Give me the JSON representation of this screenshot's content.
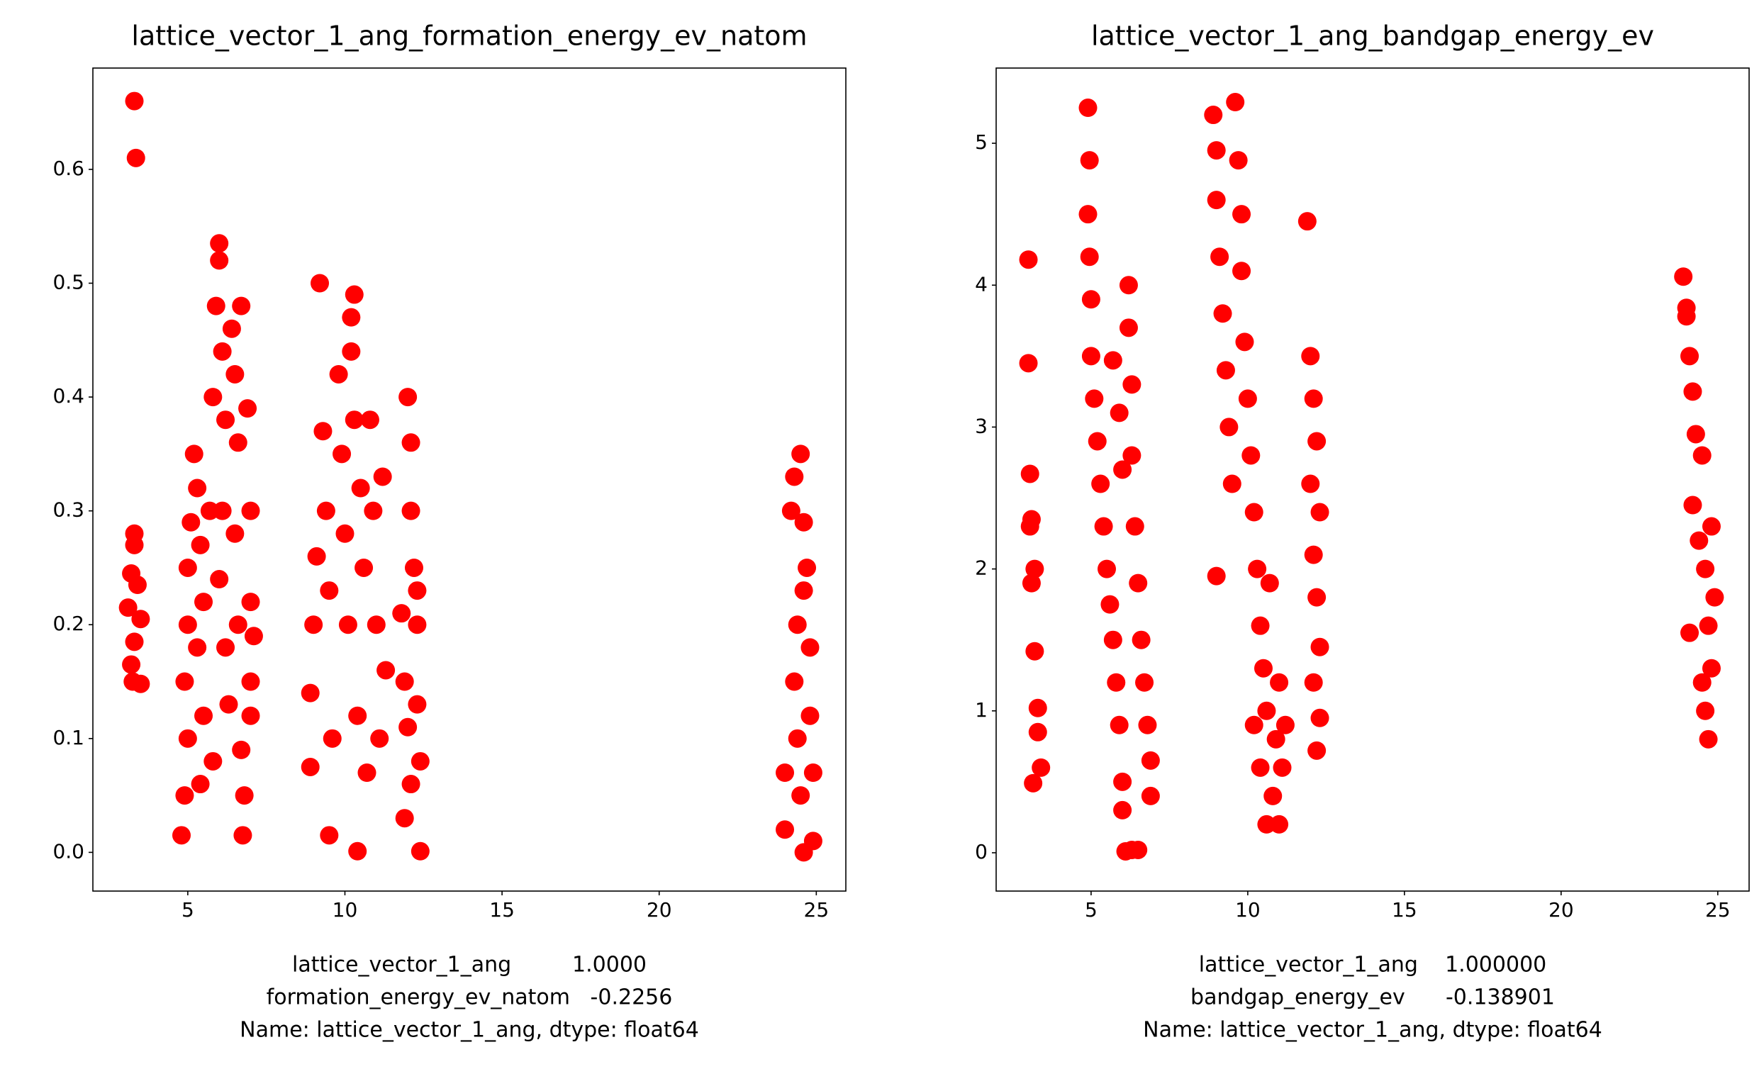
{
  "chart_data": [
    {
      "type": "scatter",
      "title": "lattice_vector_1_ang_formation_energy_ev_natom",
      "xlabel": [
        "lattice_vector_1_ang         1.0000",
        "formation_energy_ev_natom   -0.2256",
        "Name: lattice_vector_1_ang, dtype: float64"
      ],
      "color": "#ff0000",
      "xlim": [
        1.98,
        25.94
      ],
      "xticks": [
        5,
        10,
        15,
        20,
        25
      ],
      "ylim": [
        -0.034,
        0.689
      ],
      "yticks": [
        {
          "value": 0,
          "label": "0.0"
        },
        0.1,
        0.2,
        0.3,
        0.4,
        0.5,
        0.6
      ],
      "x": [
        3.3,
        3.35,
        3.3,
        3.2,
        3.1,
        3.5,
        3.4,
        3.2,
        3.25,
        3.5,
        3.3,
        3.3,
        4.8,
        4.9,
        5.0,
        4.9,
        5.0,
        5.0,
        5.1,
        5.2,
        5.3,
        5.4,
        5.5,
        5.3,
        5.5,
        5.4,
        5.8,
        5.7,
        5.8,
        5.9,
        6.0,
        6.0,
        6.1,
        6.2,
        6.1,
        6.0,
        6.2,
        6.3,
        6.4,
        6.5,
        6.6,
        6.5,
        6.6,
        6.7,
        6.7,
        6.8,
        6.75,
        6.9,
        7.0,
        7.0,
        7.1,
        7.0,
        7.0,
        8.9,
        8.9,
        9.0,
        9.1,
        9.2,
        9.3,
        9.4,
        9.5,
        9.6,
        9.5,
        9.8,
        9.9,
        10.0,
        10.1,
        10.2,
        10.2,
        10.3,
        10.3,
        10.4,
        10.4,
        10.5,
        10.6,
        10.7,
        10.8,
        10.9,
        11.0,
        11.1,
        11.2,
        11.3,
        11.8,
        11.9,
        12.0,
        12.1,
        12.1,
        12.2,
        12.0,
        12.1,
        11.9,
        12.3,
        12.3,
        12.4,
        12.4,
        12.3,
        24.0,
        24.0,
        24.2,
        24.3,
        24.4,
        24.3,
        24.4,
        24.5,
        24.5,
        24.6,
        24.6,
        24.7,
        24.8,
        24.8,
        24.9,
        24.9,
        24.6
      ],
      "values": [
        0.66,
        0.61,
        0.28,
        0.245,
        0.215,
        0.205,
        0.235,
        0.165,
        0.15,
        0.148,
        0.185,
        0.27,
        0.015,
        0.05,
        0.1,
        0.15,
        0.2,
        0.25,
        0.29,
        0.35,
        0.32,
        0.27,
        0.22,
        0.18,
        0.12,
        0.06,
        0.08,
        0.3,
        0.4,
        0.48,
        0.535,
        0.52,
        0.44,
        0.38,
        0.3,
        0.24,
        0.18,
        0.13,
        0.46,
        0.42,
        0.36,
        0.28,
        0.2,
        0.48,
        0.09,
        0.05,
        0.015,
        0.39,
        0.3,
        0.22,
        0.19,
        0.15,
        0.12,
        0.075,
        0.14,
        0.2,
        0.26,
        0.5,
        0.37,
        0.3,
        0.23,
        0.1,
        0.015,
        0.42,
        0.35,
        0.28,
        0.2,
        0.47,
        0.44,
        0.49,
        0.38,
        0.12,
        0.001,
        0.32,
        0.25,
        0.07,
        0.38,
        0.3,
        0.2,
        0.1,
        0.33,
        0.16,
        0.21,
        0.15,
        0.4,
        0.36,
        0.3,
        0.25,
        0.11,
        0.06,
        0.03,
        0.2,
        0.13,
        0.08,
        0.001,
        0.23,
        0.07,
        0.02,
        0.3,
        0.33,
        0.2,
        0.15,
        0.1,
        0.35,
        0.05,
        0.29,
        0.23,
        0.25,
        0.18,
        0.12,
        0.07,
        0.01,
        0.0
      ]
    },
    {
      "type": "scatter",
      "title": "lattice_vector_1_ang_bandgap_energy_ev",
      "xlabel": [
        "lattice_vector_1_ang    1.000000",
        "bandgap_energy_ev      -0.138901",
        "Name: lattice_vector_1_ang, dtype: float64"
      ],
      "color": "#ff0000",
      "xlim": [
        1.97,
        26.0
      ],
      "xticks": [
        5,
        10,
        15,
        20,
        25
      ],
      "ylim": [
        -0.27,
        5.53
      ],
      "yticks": [
        0,
        1,
        2,
        3,
        4,
        5
      ],
      "x": [
        3.0,
        3.0,
        3.05,
        3.1,
        3.1,
        3.2,
        3.2,
        3.3,
        3.3,
        3.15,
        3.4,
        3.05,
        4.9,
        4.95,
        4.9,
        4.95,
        5.0,
        5.0,
        5.1,
        5.2,
        5.3,
        5.4,
        5.5,
        5.6,
        5.7,
        5.8,
        5.9,
        6.0,
        6.0,
        5.7,
        5.9,
        6.0,
        6.1,
        6.2,
        6.2,
        6.3,
        6.3,
        6.4,
        6.5,
        6.6,
        6.7,
        6.8,
        6.9,
        6.5,
        6.3,
        6.9,
        8.9,
        9.0,
        9.0,
        9.1,
        9.2,
        9.3,
        9.4,
        9.5,
        9.0,
        9.6,
        9.7,
        9.8,
        9.8,
        9.9,
        10.0,
        10.1,
        10.2,
        10.3,
        10.4,
        10.5,
        10.6,
        10.6,
        10.8,
        10.9,
        11.0,
        11.1,
        10.7,
        11.0,
        11.2,
        10.2,
        10.4,
        11.9,
        12.0,
        12.1,
        12.2,
        12.0,
        12.1,
        12.2,
        12.3,
        12.1,
        12.3,
        12.2,
        12.3,
        23.9,
        24.0,
        24.0,
        24.1,
        24.2,
        24.3,
        24.2,
        24.1,
        24.4,
        24.5,
        24.6,
        24.7,
        24.8,
        24.6,
        24.7,
        24.9,
        24.8,
        24.5
      ],
      "values": [
        4.18,
        3.45,
        2.67,
        2.35,
        1.9,
        2.0,
        1.42,
        1.02,
        0.85,
        0.49,
        0.6,
        2.3,
        5.25,
        4.88,
        4.5,
        4.2,
        3.9,
        3.5,
        3.2,
        2.9,
        2.6,
        2.3,
        2.0,
        1.75,
        1.5,
        1.2,
        0.9,
        0.5,
        0.3,
        3.47,
        3.1,
        2.7,
        0.01,
        4.0,
        3.7,
        3.3,
        2.8,
        2.3,
        1.9,
        1.5,
        1.2,
        0.9,
        0.65,
        0.02,
        0.02,
        0.4,
        5.2,
        4.95,
        4.6,
        4.2,
        3.8,
        3.4,
        3.0,
        2.6,
        1.95,
        5.29,
        4.88,
        4.5,
        4.1,
        3.6,
        3.2,
        2.8,
        2.4,
        2.0,
        1.6,
        1.3,
        1.0,
        0.2,
        0.4,
        0.8,
        0.2,
        0.6,
        1.9,
        1.2,
        0.9,
        0.9,
        0.6,
        4.45,
        3.5,
        3.2,
        2.9,
        2.6,
        2.1,
        1.8,
        1.45,
        1.2,
        0.95,
        0.72,
        2.4,
        4.06,
        3.84,
        3.78,
        3.5,
        3.25,
        2.95,
        2.45,
        1.55,
        2.2,
        2.8,
        2.0,
        1.6,
        1.3,
        1.0,
        0.8,
        1.8,
        2.3,
        1.2
      ]
    }
  ]
}
